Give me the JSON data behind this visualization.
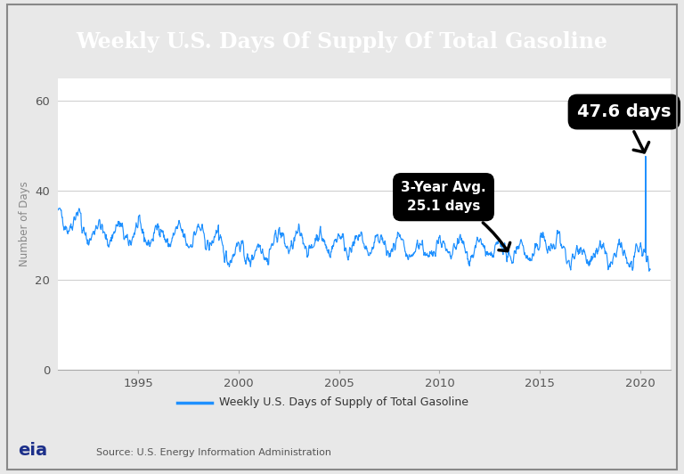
{
  "title": "Weekly U.S. Days Of Supply Of Total Gasoline",
  "title_bg": "#1c2f8a",
  "title_color": "#ffffff",
  "ylabel": "Number of Days",
  "legend_label": "Weekly U.S. Days of Supply of Total Gasoline",
  "source_text": "Source: U.S. Energy Information Administration",
  "line_color": "#1e90ff",
  "ylim": [
    0,
    65
  ],
  "yticks": [
    0,
    20,
    40,
    60
  ],
  "xlim": [
    1991.0,
    2021.5
  ],
  "xticks": [
    1995,
    2000,
    2005,
    2010,
    2015,
    2020
  ],
  "annotation_47_text": "47.6 days",
  "annotation_25_line1": "3-Year Avg.",
  "annotation_25_line2": "25.1 days",
  "bg_color": "#ffffff",
  "outer_bg": "#e8e8e8",
  "border_color": "#888888"
}
